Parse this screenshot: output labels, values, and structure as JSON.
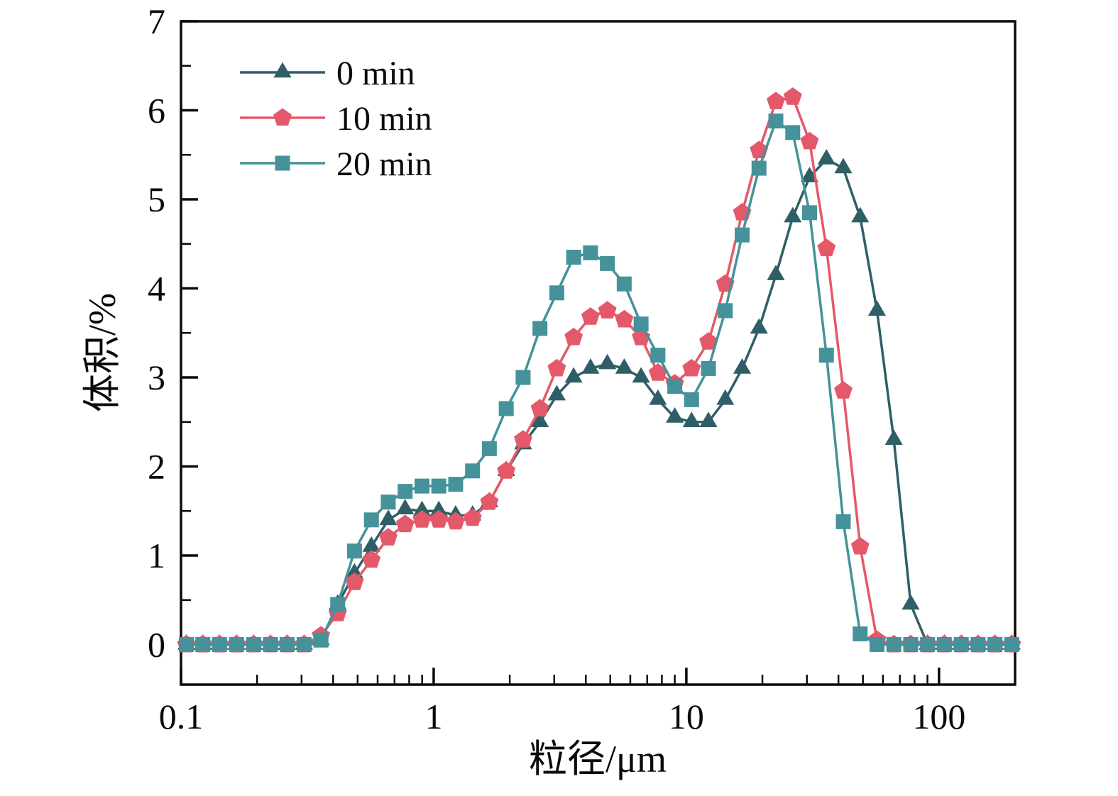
{
  "chart_data": {
    "type": "line",
    "title": "",
    "xlabel": "粒径/μm",
    "ylabel": "体积/%",
    "x_scale": "log",
    "xlim": [
      0.1,
      200
    ],
    "ylim": [
      -0.45,
      7
    ],
    "x_major_ticks": [
      0.1,
      1,
      10,
      100
    ],
    "x_major_tick_labels": [
      "0.1",
      "1",
      "10",
      "100"
    ],
    "y_major_ticks": [
      0,
      1,
      2,
      3,
      4,
      5,
      6,
      7
    ],
    "grid": "off",
    "legend_position": "top-left",
    "x": [
      0.105,
      0.122,
      0.142,
      0.166,
      0.194,
      0.226,
      0.263,
      0.307,
      0.358,
      0.417,
      0.486,
      0.567,
      0.661,
      0.771,
      0.899,
      1.048,
      1.222,
      1.425,
      1.661,
      1.937,
      2.259,
      2.634,
      3.071,
      3.581,
      4.175,
      4.868,
      5.676,
      6.619,
      7.718,
      9.0,
      10.49,
      12.23,
      14.26,
      16.63,
      19.39,
      22.61,
      26.37,
      30.74,
      35.85,
      41.8,
      48.74,
      56.83,
      66.26,
      77.26,
      90.09,
      105.0,
      122.5,
      142.8,
      166.5,
      194.2
    ],
    "series": [
      {
        "name": "0 min",
        "color": "#2f5f66",
        "marker": "triangle",
        "values": [
          0,
          0,
          0,
          0,
          0,
          0,
          0,
          0,
          0.05,
          0.45,
          0.8,
          1.1,
          1.4,
          1.52,
          1.5,
          1.5,
          1.45,
          1.45,
          1.6,
          1.95,
          2.25,
          2.5,
          2.8,
          3.0,
          3.1,
          3.15,
          3.1,
          3.0,
          2.75,
          2.55,
          2.5,
          2.5,
          2.75,
          3.1,
          3.55,
          4.15,
          4.8,
          5.25,
          5.45,
          5.35,
          4.8,
          3.75,
          2.3,
          0.45,
          0,
          0,
          0,
          0,
          0,
          0
        ]
      },
      {
        "name": "10 min",
        "color": "#e4596a",
        "marker": "pentagon",
        "values": [
          0,
          0,
          0,
          0,
          0,
          0,
          0,
          0,
          0.1,
          0.35,
          0.7,
          0.95,
          1.2,
          1.35,
          1.4,
          1.4,
          1.38,
          1.42,
          1.6,
          1.95,
          2.3,
          2.65,
          3.1,
          3.45,
          3.68,
          3.75,
          3.65,
          3.45,
          3.05,
          2.93,
          3.1,
          3.4,
          4.05,
          4.85,
          5.55,
          6.1,
          6.15,
          5.65,
          4.45,
          2.85,
          1.1,
          0.05,
          0,
          0,
          0,
          0,
          0,
          0,
          0,
          0
        ]
      },
      {
        "name": "20 min",
        "color": "#45929a",
        "marker": "square",
        "values": [
          0,
          0,
          0,
          0,
          0,
          0,
          0,
          0,
          0.05,
          0.45,
          1.05,
          1.4,
          1.6,
          1.72,
          1.78,
          1.78,
          1.8,
          1.95,
          2.2,
          2.65,
          3.0,
          3.55,
          3.95,
          4.35,
          4.4,
          4.28,
          4.05,
          3.6,
          3.25,
          2.9,
          2.75,
          3.1,
          3.75,
          4.6,
          5.35,
          5.88,
          5.75,
          4.85,
          3.25,
          1.38,
          0.12,
          0,
          0,
          0,
          0,
          0,
          0,
          0,
          0,
          0
        ]
      }
    ]
  }
}
